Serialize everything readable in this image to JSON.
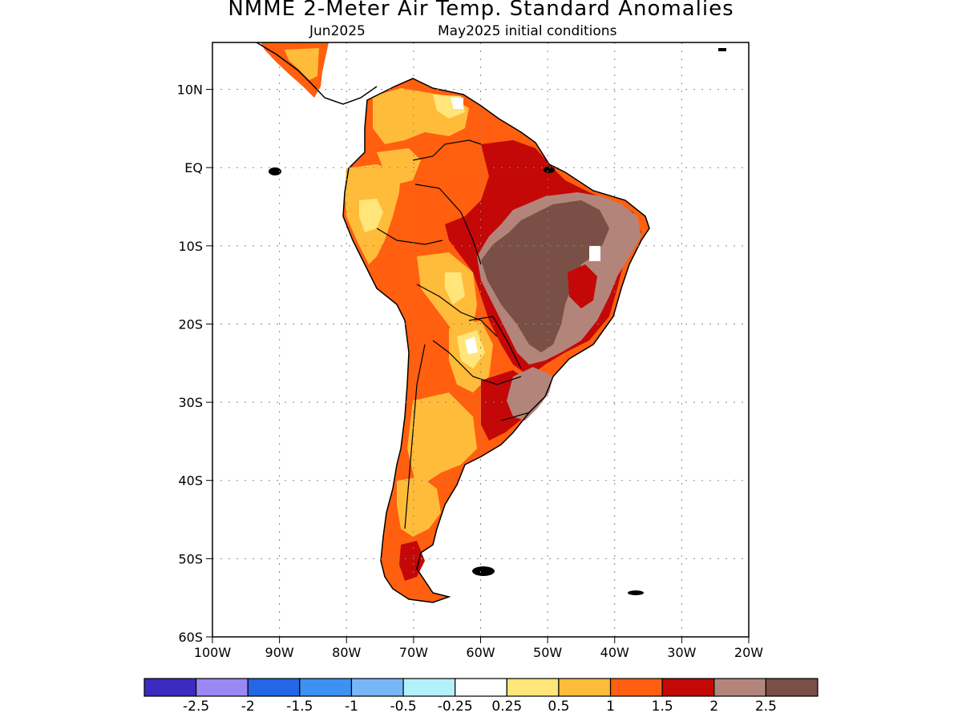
{
  "title": "NMME 2-Meter Air Temp. Standard Anomalies",
  "subtitle_left": "Jun2025",
  "subtitle_right": "May2025 initial conditions",
  "lat_labels": [
    "10N",
    "EQ",
    "10S",
    "20S",
    "30S",
    "40S",
    "50S",
    "60S"
  ],
  "lat_values": [
    10,
    0,
    -10,
    -20,
    -30,
    -40,
    -50,
    -60
  ],
  "lon_labels": [
    "100W",
    "90W",
    "80W",
    "70W",
    "60W",
    "50W",
    "40W",
    "30W",
    "20W"
  ],
  "lon_values": [
    -100,
    -90,
    -80,
    -70,
    -60,
    -50,
    -40,
    -30,
    -20
  ],
  "extent": {
    "lon_min": -100,
    "lon_max": -20,
    "lat_min": -60,
    "lat_max": 16
  },
  "colorbar": {
    "colors": [
      "#3b2cbf",
      "#9b88f5",
      "#2367e6",
      "#3d91f2",
      "#78b7f7",
      "#b3f0fa",
      "#ffffff",
      "#ffe57a",
      "#ffbc3a",
      "#ff5f0f",
      "#c40808",
      "#b3857a",
      "#7a4f45"
    ],
    "labels": [
      "-2.5",
      "-2",
      "-1.5",
      "-1",
      "-0.5",
      "-0.25",
      "0.25",
      "0.5",
      "1",
      "1.5",
      "2",
      "2.5"
    ]
  },
  "colors": {
    "light_yellow": "#ffe57a",
    "orange": "#ffbc3a",
    "dark_orange": "#ff5f0f",
    "red": "#c40808",
    "mauve": "#b3857a",
    "brown": "#7a4f45",
    "white": "#ffffff"
  }
}
